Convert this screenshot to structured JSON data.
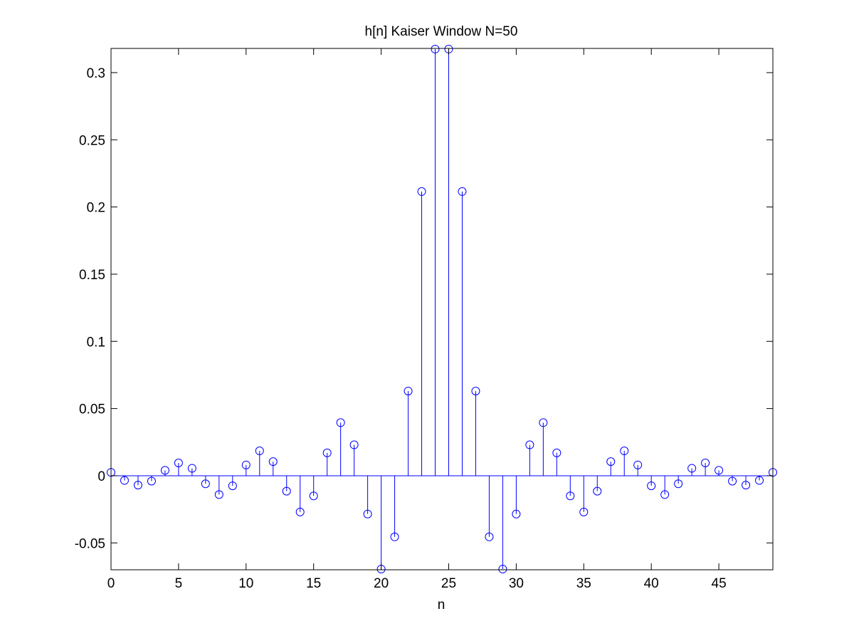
{
  "chart_data": {
    "type": "stem",
    "title": "h[n] Kaiser Window N=50",
    "xlabel": "n",
    "ylabel": "",
    "xlim": [
      0,
      49
    ],
    "ylim": [
      -0.07,
      0.318
    ],
    "xticks": [
      0,
      5,
      10,
      15,
      20,
      25,
      30,
      35,
      40,
      45
    ],
    "xtick_labels": [
      "0",
      "5",
      "10",
      "15",
      "20",
      "25",
      "30",
      "35",
      "40",
      "45"
    ],
    "yticks": [
      -0.05,
      0,
      0.05,
      0.1,
      0.15,
      0.2,
      0.25,
      0.3
    ],
    "ytick_labels": [
      "-0.05",
      "0",
      "0.05",
      "0.1",
      "0.15",
      "0.2",
      "0.25",
      "0.3"
    ],
    "grid": false,
    "colors": {
      "stem": "#0000ff",
      "axes": "#000000",
      "background": "#ffffff"
    },
    "x": [
      0,
      1,
      2,
      3,
      4,
      5,
      6,
      7,
      8,
      9,
      10,
      11,
      12,
      13,
      14,
      15,
      16,
      17,
      18,
      19,
      20,
      21,
      22,
      23,
      24,
      25,
      26,
      27,
      28,
      29,
      30,
      31,
      32,
      33,
      34,
      35,
      36,
      37,
      38,
      39,
      40,
      41,
      42,
      43,
      44,
      45,
      46,
      47,
      48,
      49
    ],
    "values": [
      0.0025,
      -0.0035,
      -0.007,
      -0.004,
      0.004,
      0.0095,
      0.0055,
      -0.006,
      -0.014,
      -0.0075,
      0.008,
      0.0185,
      0.0105,
      -0.0115,
      -0.027,
      -0.015,
      0.017,
      0.0395,
      0.023,
      -0.0285,
      -0.0695,
      -0.0455,
      0.063,
      0.2115,
      0.3175,
      0.3175,
      0.2115,
      0.063,
      -0.0455,
      -0.0695,
      -0.0285,
      0.023,
      0.0395,
      0.017,
      -0.015,
      -0.027,
      -0.0115,
      0.0105,
      0.0185,
      0.008,
      -0.0075,
      -0.014,
      -0.006,
      0.0055,
      0.0095,
      0.004,
      -0.004,
      -0.007,
      -0.0035,
      0.0025
    ]
  }
}
